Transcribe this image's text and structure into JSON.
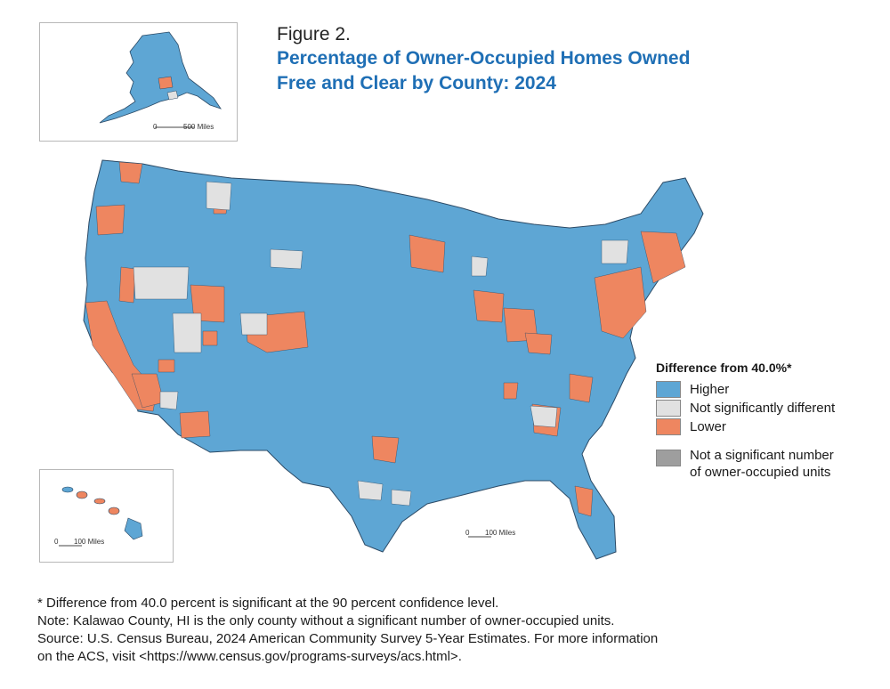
{
  "figure_label": "Figure 2.",
  "title_line1": "Percentage of Owner-Occupied Homes Owned",
  "title_line2": "Free and Clear by County: 2024",
  "alaska_scale": {
    "zero": "0",
    "label": "500 Miles"
  },
  "hawaii_scale": {
    "zero": "0",
    "label": "100 Miles"
  },
  "main_scale": {
    "zero": "0",
    "label": "100 Miles"
  },
  "legend": {
    "title": "Difference from 40.0%*",
    "items": [
      {
        "label": "Higher",
        "color": "#5ea6d4"
      },
      {
        "label": "Not significantly different",
        "color": "#e1e1e1"
      },
      {
        "label": "Lower",
        "color": "#ee8660"
      }
    ],
    "na_line1": "Not a significant number",
    "na_line2": "of owner-occupied units",
    "na_color": "#9e9e9e"
  },
  "notes": [
    "* Difference from 40.0 percent is significant at the 90 percent confidence level.",
    "Note: Kalawao County, HI is the only county without a significant number of owner-occupied units.",
    "Source: U.S. Census Bureau, 2024 American Community Survey 5-Year Estimates. For more information",
    "on the ACS, visit <https://www.census.gov/programs-surveys/acs.html>."
  ]
}
